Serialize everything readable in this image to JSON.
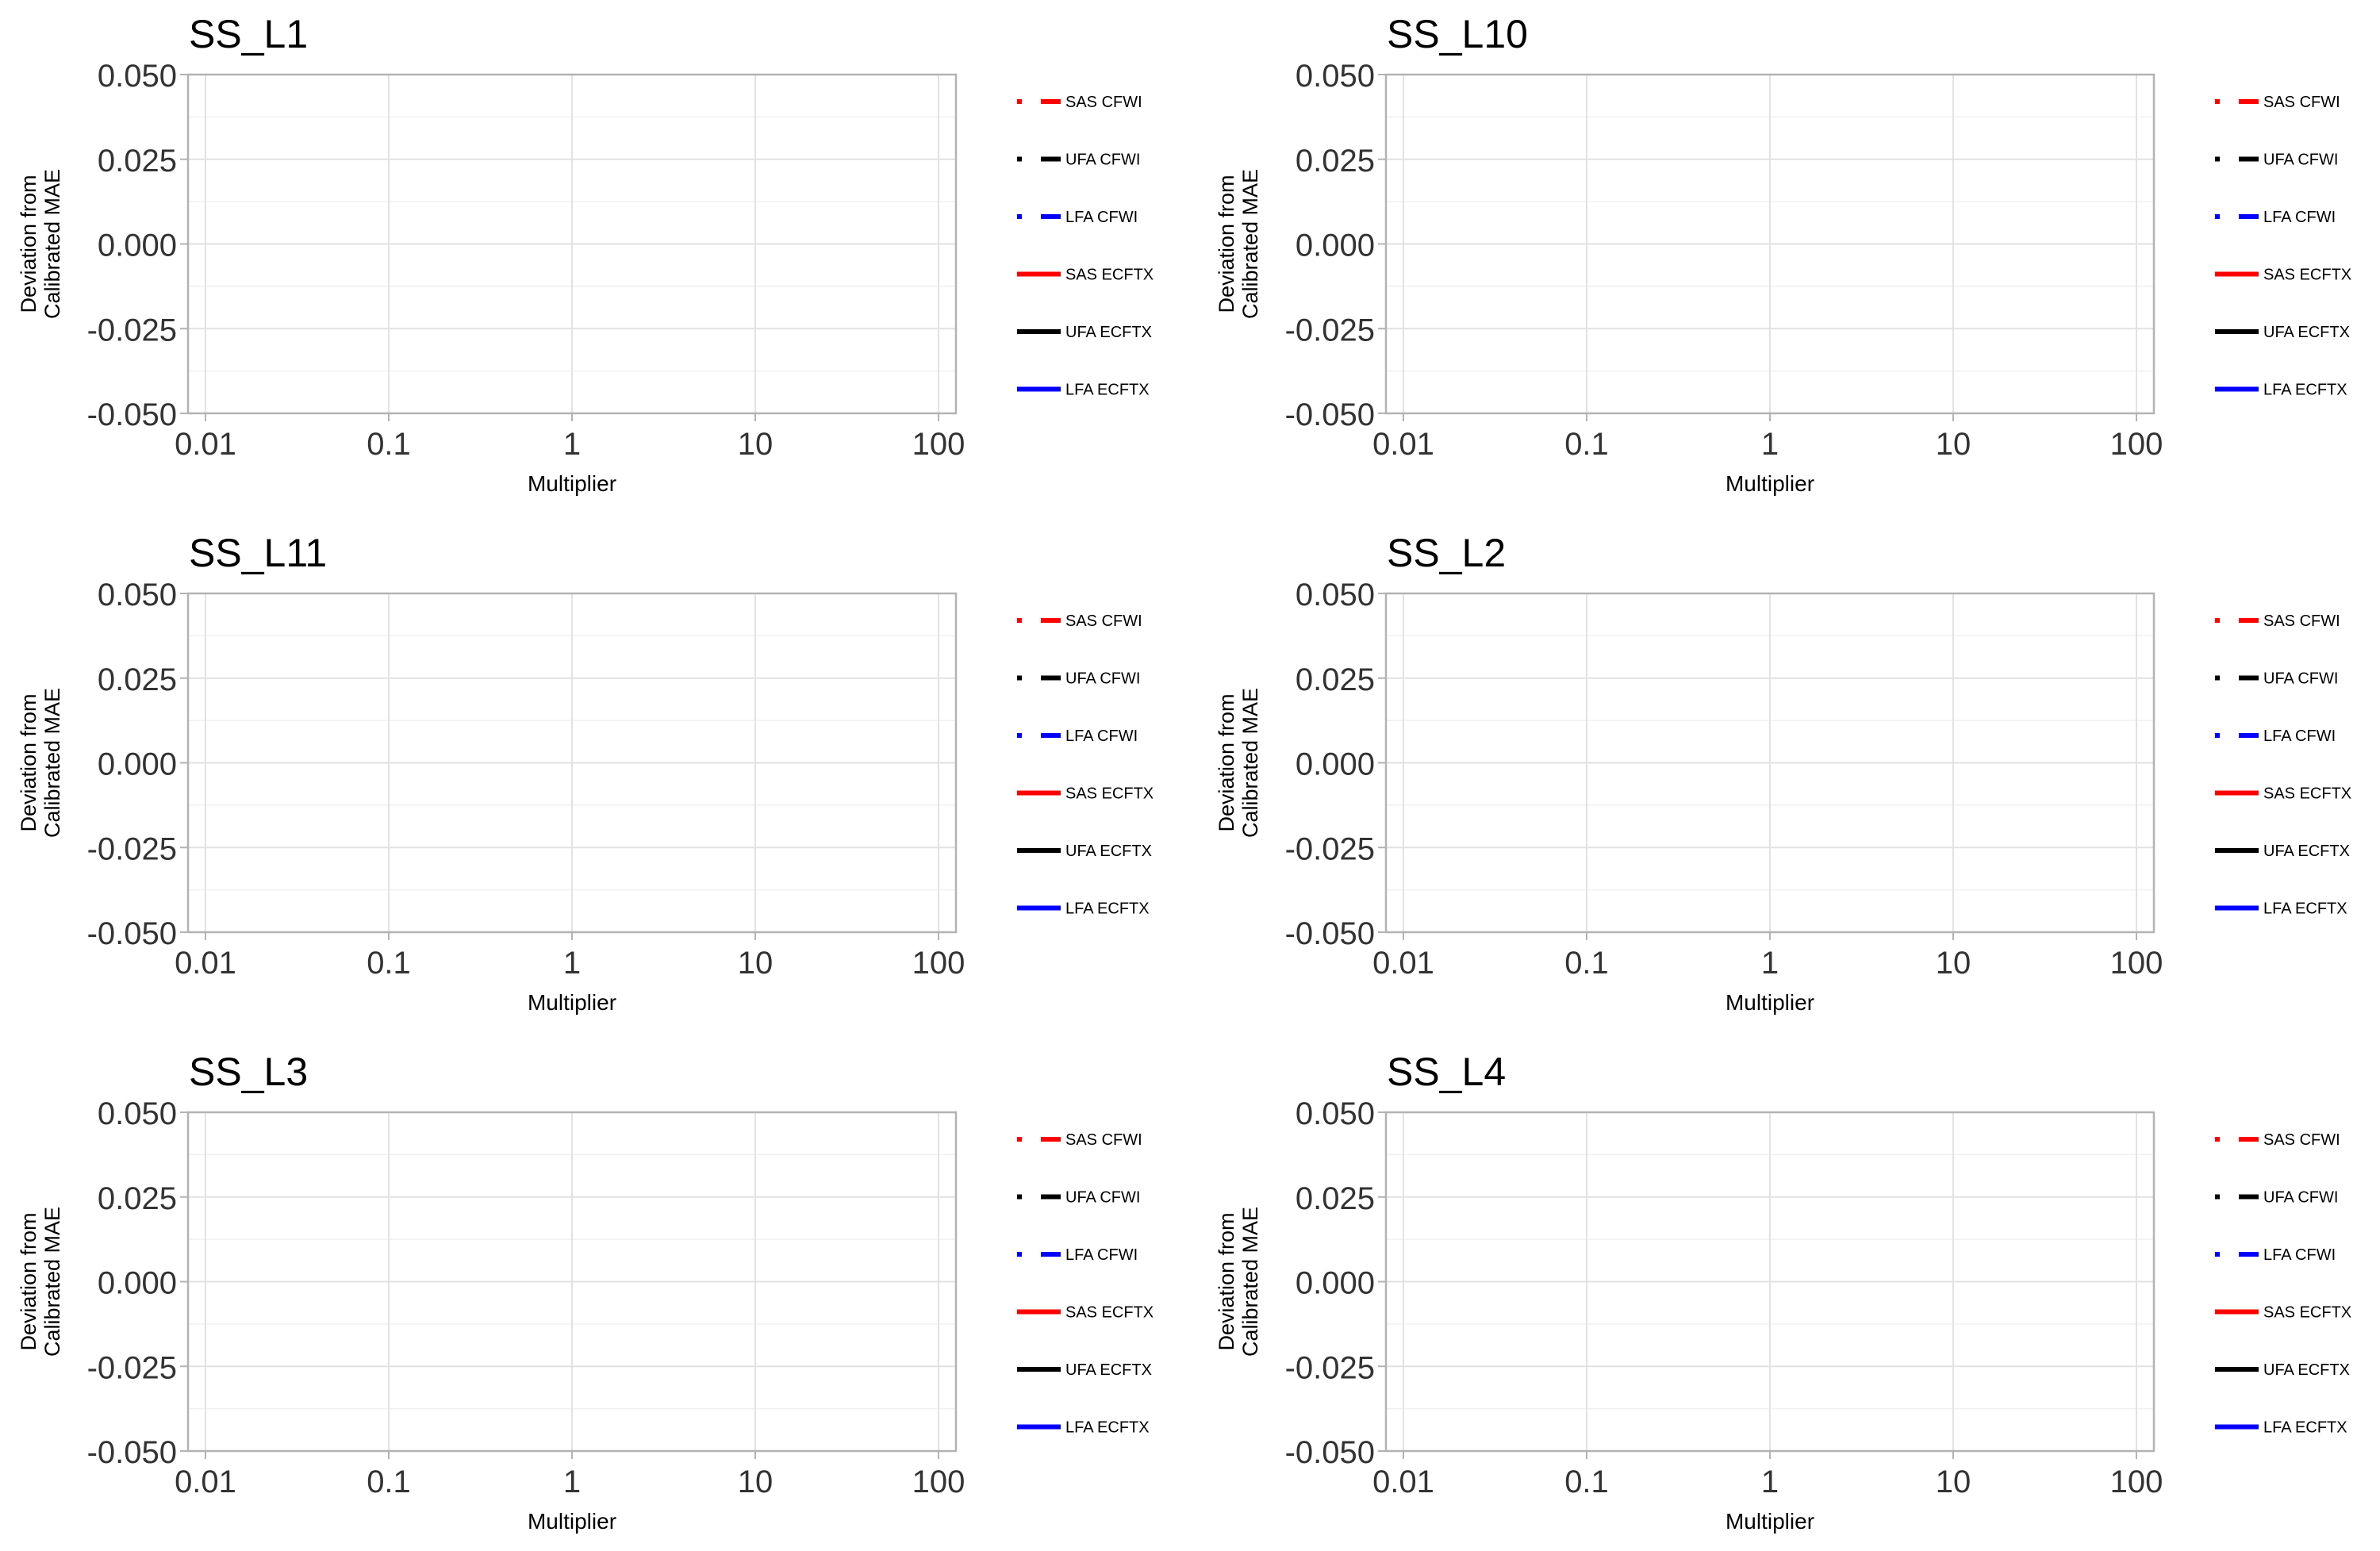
{
  "chart_data": [
    {
      "type": "line",
      "title": "SS_L1",
      "xlabel": "Multiplier",
      "ylabel": [
        "Deviation from",
        "Calibrated MAE"
      ],
      "x_scale": "log",
      "xlim": [
        0.01,
        100
      ],
      "ylim": [
        -0.05,
        0.05
      ],
      "x_ticks": [
        "0.01",
        "0.1",
        "1",
        "10",
        "100"
      ],
      "y_ticks": [
        "0.050",
        "0.025",
        "0.000",
        "-0.025",
        "-0.050"
      ],
      "grid": true,
      "legend_position": "right",
      "series": [
        {
          "name": "SAS CFWI",
          "color": "#ff0000",
          "style": "dashed",
          "values": []
        },
        {
          "name": "UFA CFWI",
          "color": "#000000",
          "style": "dashed",
          "values": []
        },
        {
          "name": "LFA CFWI",
          "color": "#0000ff",
          "style": "dashed",
          "values": []
        },
        {
          "name": "SAS ECFTX",
          "color": "#ff0000",
          "style": "solid",
          "values": []
        },
        {
          "name": "UFA ECFTX",
          "color": "#000000",
          "style": "solid",
          "values": []
        },
        {
          "name": "LFA ECFTX",
          "color": "#0000ff",
          "style": "solid",
          "values": []
        }
      ]
    },
    {
      "type": "line",
      "title": "SS_L10",
      "xlabel": "Multiplier",
      "ylabel": [
        "Deviation from",
        "Calibrated MAE"
      ],
      "x_scale": "log",
      "xlim": [
        0.01,
        100
      ],
      "ylim": [
        -0.05,
        0.05
      ],
      "x_ticks": [
        "0.01",
        "0.1",
        "1",
        "10",
        "100"
      ],
      "y_ticks": [
        "0.050",
        "0.025",
        "0.000",
        "-0.025",
        "-0.050"
      ],
      "grid": true,
      "legend_position": "right",
      "series": [
        {
          "name": "SAS CFWI",
          "color": "#ff0000",
          "style": "dashed",
          "values": []
        },
        {
          "name": "UFA CFWI",
          "color": "#000000",
          "style": "dashed",
          "values": []
        },
        {
          "name": "LFA CFWI",
          "color": "#0000ff",
          "style": "dashed",
          "values": []
        },
        {
          "name": "SAS ECFTX",
          "color": "#ff0000",
          "style": "solid",
          "values": []
        },
        {
          "name": "UFA ECFTX",
          "color": "#000000",
          "style": "solid",
          "values": []
        },
        {
          "name": "LFA ECFTX",
          "color": "#0000ff",
          "style": "solid",
          "values": []
        }
      ]
    },
    {
      "type": "line",
      "title": "SS_L11",
      "xlabel": "Multiplier",
      "ylabel": [
        "Deviation from",
        "Calibrated MAE"
      ],
      "x_scale": "log",
      "xlim": [
        0.01,
        100
      ],
      "ylim": [
        -0.05,
        0.05
      ],
      "x_ticks": [
        "0.01",
        "0.1",
        "1",
        "10",
        "100"
      ],
      "y_ticks": [
        "0.050",
        "0.025",
        "0.000",
        "-0.025",
        "-0.050"
      ],
      "grid": true,
      "legend_position": "right",
      "series": [
        {
          "name": "SAS CFWI",
          "color": "#ff0000",
          "style": "dashed",
          "values": []
        },
        {
          "name": "UFA CFWI",
          "color": "#000000",
          "style": "dashed",
          "values": []
        },
        {
          "name": "LFA CFWI",
          "color": "#0000ff",
          "style": "dashed",
          "values": []
        },
        {
          "name": "SAS ECFTX",
          "color": "#ff0000",
          "style": "solid",
          "values": []
        },
        {
          "name": "UFA ECFTX",
          "color": "#000000",
          "style": "solid",
          "values": []
        },
        {
          "name": "LFA ECFTX",
          "color": "#0000ff",
          "style": "solid",
          "values": []
        }
      ]
    },
    {
      "type": "line",
      "title": "SS_L2",
      "xlabel": "Multiplier",
      "ylabel": [
        "Deviation from",
        "Calibrated MAE"
      ],
      "x_scale": "log",
      "xlim": [
        0.01,
        100
      ],
      "ylim": [
        -0.05,
        0.05
      ],
      "x_ticks": [
        "0.01",
        "0.1",
        "1",
        "10",
        "100"
      ],
      "y_ticks": [
        "0.050",
        "0.025",
        "0.000",
        "-0.025",
        "-0.050"
      ],
      "grid": true,
      "legend_position": "right",
      "series": [
        {
          "name": "SAS CFWI",
          "color": "#ff0000",
          "style": "dashed",
          "values": []
        },
        {
          "name": "UFA CFWI",
          "color": "#000000",
          "style": "dashed",
          "values": []
        },
        {
          "name": "LFA CFWI",
          "color": "#0000ff",
          "style": "dashed",
          "values": []
        },
        {
          "name": "SAS ECFTX",
          "color": "#ff0000",
          "style": "solid",
          "values": []
        },
        {
          "name": "UFA ECFTX",
          "color": "#000000",
          "style": "solid",
          "values": []
        },
        {
          "name": "LFA ECFTX",
          "color": "#0000ff",
          "style": "solid",
          "values": []
        }
      ]
    },
    {
      "type": "line",
      "title": "SS_L3",
      "xlabel": "Multiplier",
      "ylabel": [
        "Deviation from",
        "Calibrated MAE"
      ],
      "x_scale": "log",
      "xlim": [
        0.01,
        100
      ],
      "ylim": [
        -0.05,
        0.05
      ],
      "x_ticks": [
        "0.01",
        "0.1",
        "1",
        "10",
        "100"
      ],
      "y_ticks": [
        "0.050",
        "0.025",
        "0.000",
        "-0.025",
        "-0.050"
      ],
      "grid": true,
      "legend_position": "right",
      "series": [
        {
          "name": "SAS CFWI",
          "color": "#ff0000",
          "style": "dashed",
          "values": []
        },
        {
          "name": "UFA CFWI",
          "color": "#000000",
          "style": "dashed",
          "values": []
        },
        {
          "name": "LFA CFWI",
          "color": "#0000ff",
          "style": "dashed",
          "values": []
        },
        {
          "name": "SAS ECFTX",
          "color": "#ff0000",
          "style": "solid",
          "values": []
        },
        {
          "name": "UFA ECFTX",
          "color": "#000000",
          "style": "solid",
          "values": []
        },
        {
          "name": "LFA ECFTX",
          "color": "#0000ff",
          "style": "solid",
          "values": []
        }
      ]
    },
    {
      "type": "line",
      "title": "SS_L4",
      "xlabel": "Multiplier",
      "ylabel": [
        "Deviation from",
        "Calibrated MAE"
      ],
      "x_scale": "log",
      "xlim": [
        0.01,
        100
      ],
      "ylim": [
        -0.05,
        0.05
      ],
      "x_ticks": [
        "0.01",
        "0.1",
        "1",
        "10",
        "100"
      ],
      "y_ticks": [
        "0.050",
        "0.025",
        "0.000",
        "-0.025",
        "-0.050"
      ],
      "grid": true,
      "legend_position": "right",
      "series": [
        {
          "name": "SAS CFWI",
          "color": "#ff0000",
          "style": "dashed",
          "values": []
        },
        {
          "name": "UFA CFWI",
          "color": "#000000",
          "style": "dashed",
          "values": []
        },
        {
          "name": "LFA CFWI",
          "color": "#0000ff",
          "style": "dashed",
          "values": []
        },
        {
          "name": "SAS ECFTX",
          "color": "#ff0000",
          "style": "solid",
          "values": []
        },
        {
          "name": "UFA ECFTX",
          "color": "#000000",
          "style": "solid",
          "values": []
        },
        {
          "name": "LFA ECFTX",
          "color": "#0000ff",
          "style": "solid",
          "values": []
        }
      ]
    }
  ]
}
